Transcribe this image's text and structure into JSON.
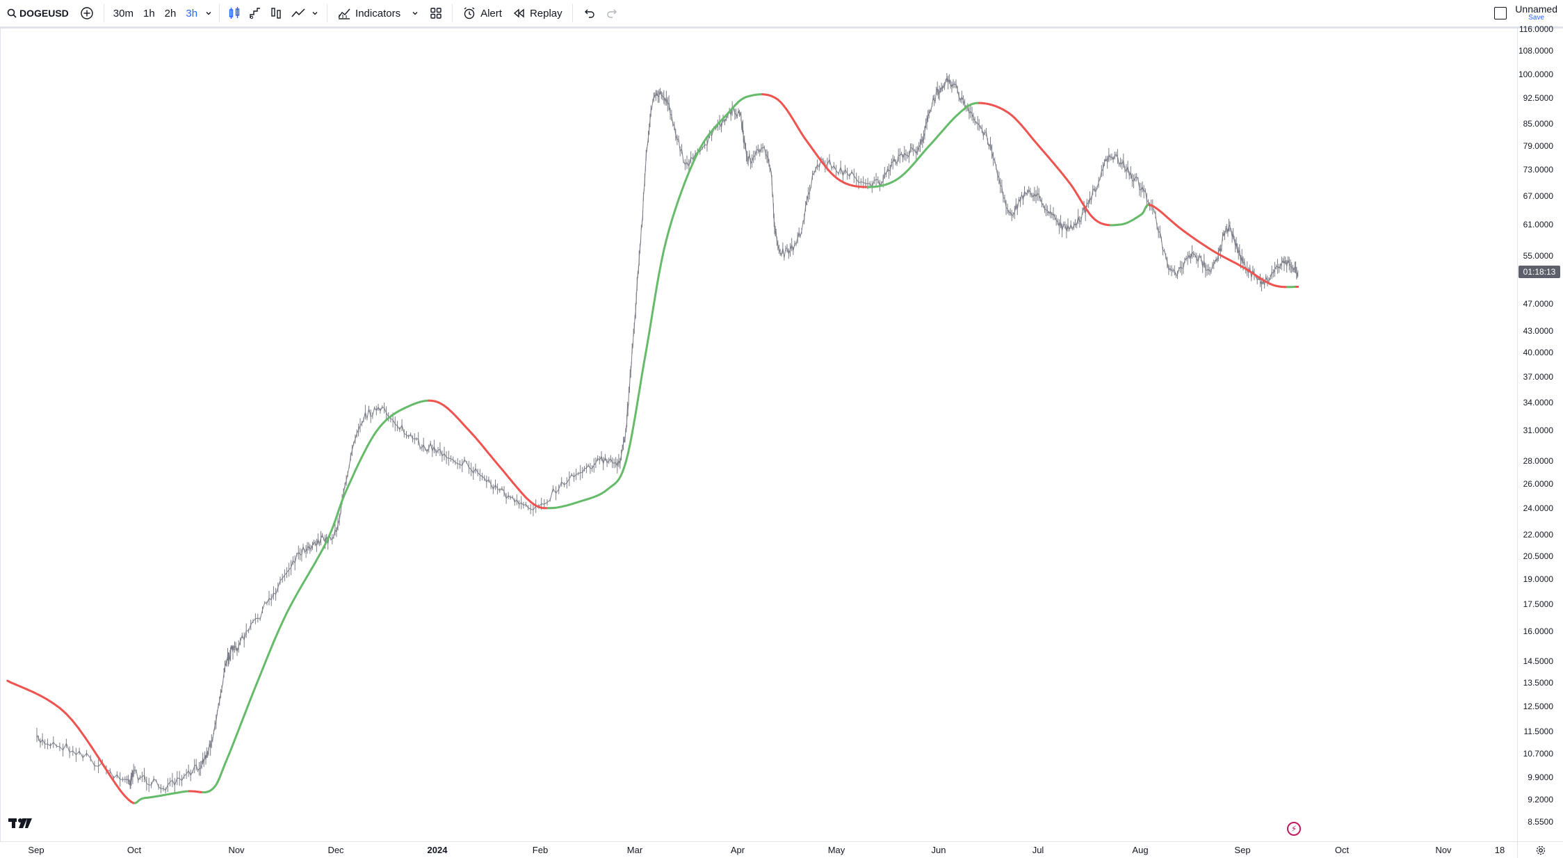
{
  "toolbar": {
    "symbol": "DOGEUSD",
    "intervals": [
      "30m",
      "1h",
      "2h",
      "3h"
    ],
    "active_interval": "3h",
    "indicators_label": "Indicators",
    "alert_label": "Alert",
    "replay_label": "Replay",
    "layout_name": "Unnamed",
    "save_label": "Save"
  },
  "colors": {
    "accent": "#2962ff",
    "candle": "#787b86",
    "ma_up": "#66bb6a",
    "ma_down": "#ef5350",
    "countdown_bg": "#5d606b"
  },
  "price_axis": {
    "ticks": [
      "116.0000",
      "108.0000",
      "100.0000",
      "92.5000",
      "85.0000",
      "79.0000",
      "73.0000",
      "67.0000",
      "61.0000",
      "55.0000",
      "47.0000",
      "43.0000",
      "40.0000",
      "37.0000",
      "34.0000",
      "31.0000",
      "28.0000",
      "26.0000",
      "24.0000",
      "22.0000",
      "20.5000",
      "19.0000",
      "17.5000",
      "16.0000",
      "14.5000",
      "13.5000",
      "12.5000",
      "11.5000",
      "10.7000",
      "9.9000",
      "9.2000",
      "8.5500"
    ],
    "countdown": "01:18:13",
    "scale": "log"
  },
  "time_axis": {
    "labels": [
      "Sep",
      "Oct",
      "Nov",
      "Dec",
      "2024",
      "Feb",
      "Mar",
      "Apr",
      "May",
      "Jun",
      "Jul",
      "Aug",
      "Sep",
      "Oct",
      "Nov",
      "18"
    ],
    "bold_label": "2024"
  },
  "chart_data": {
    "type": "line",
    "symbol": "DOGEUSD",
    "x": [
      "Sep",
      "Oct",
      "Nov",
      "Dec",
      "2024",
      "Feb",
      "Mar",
      "Apr",
      "May",
      "Jun",
      "Jul",
      "Aug",
      "Sep"
    ],
    "series": [
      {
        "values": [
          11.2,
          10.0,
          10.5,
          27.0,
          29.5,
          24.0,
          60.0,
          88.0,
          75.0,
          92.0,
          62.0,
          68.0,
          53.0
        ]
      },
      {
        "values": [
          13.5,
          9.25,
          11.0,
          22.0,
          33.0,
          24.0,
          40.0,
          92.5,
          70.0,
          85.0,
          65.0,
          63.0,
          50.0
        ]
      }
    ],
    "ylim": [
      8.55,
      116
    ],
    "yscale": "log"
  }
}
